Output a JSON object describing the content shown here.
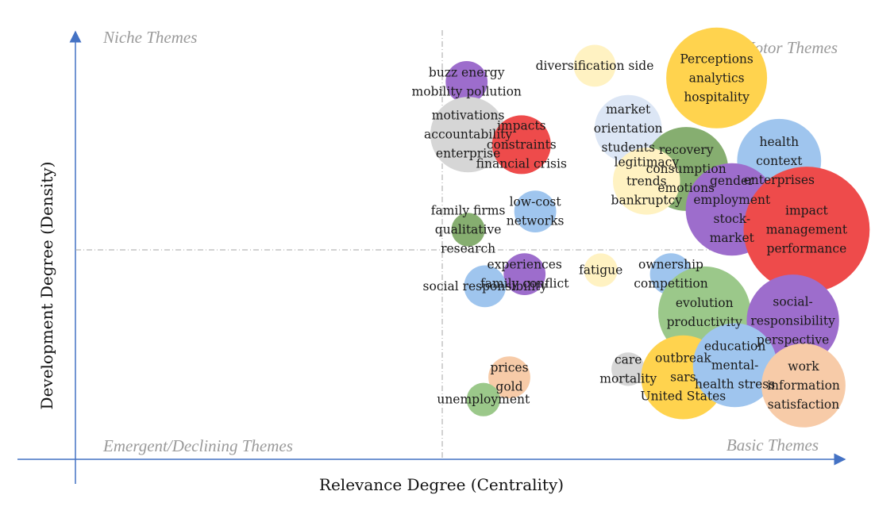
{
  "chart_data": {
    "type": "scatter",
    "subtype": "bubble",
    "title": "",
    "xlabel": "Relevance Degree (Centrality)",
    "ylabel": "Development Degree (Density)",
    "grid": false,
    "quadrant_labels": {
      "top_left": "Niche Themes",
      "top_right": "Motor Themes",
      "bottom_left": "Emergent/Declining Themes",
      "bottom_right": "Basic Themes"
    },
    "colors": {
      "axis": "#4472C4",
      "divider": "#a6a6a6",
      "yellow": "#FFD34E",
      "lightyellow": "#FFF2C2",
      "red": "#EE4B4B",
      "blue": "#9FC5EE",
      "lightblue": "#DCE6F5",
      "green": "#9BC88A",
      "darkgreen": "#86AE70",
      "purple": "#9D6DCC",
      "gray": "#d6d6d6",
      "peach": "#F7CBA8"
    },
    "themes": [
      {
        "lines": [
          "buzz energy",
          "mobility pollution"
        ],
        "x": 0.16,
        "y": 0.83,
        "size": 4,
        "color": "purple"
      },
      {
        "lines": [
          "motivations",
          "accountability",
          "enterprise"
        ],
        "x": 0.17,
        "y": 0.57,
        "size": 8,
        "color": "gray"
      },
      {
        "lines": [
          "impacts",
          "constraints",
          "financial crisis"
        ],
        "x": 0.52,
        "y": 0.52,
        "size": 6,
        "color": "red"
      },
      {
        "lines": [
          "low-cost",
          "networks"
        ],
        "x": 0.61,
        "y": 0.19,
        "size": 4,
        "color": "blue"
      },
      {
        "lines": [
          "family firms",
          "qualitative",
          "research"
        ],
        "x": 0.17,
        "y": 0.1,
        "size": 3,
        "color": "darkgreen"
      },
      {
        "lines": [
          "experiences",
          "family conflict"
        ],
        "x": 0.54,
        "y": -0.12,
        "size": 4,
        "color": "purple"
      },
      {
        "lines": [
          "social responsibility"
        ],
        "x": 0.28,
        "y": -0.18,
        "size": 4,
        "color": "blue"
      },
      {
        "lines": [
          "prices",
          "gold"
        ],
        "x": 0.44,
        "y": -0.63,
        "size": 4,
        "color": "peach"
      },
      {
        "lines": [
          "unemployment"
        ],
        "x": 0.27,
        "y": -0.74,
        "size": 3,
        "color": "green"
      },
      {
        "lines": [
          "diversification side"
        ],
        "x": 1.0,
        "y": 0.91,
        "size": 4,
        "color": "lightyellow"
      },
      {
        "lines": [
          "Perceptions",
          "analytics",
          "hospitality"
        ],
        "x": 1.8,
        "y": 0.85,
        "size": 11,
        "color": "yellow"
      },
      {
        "lines": [
          "market",
          "orientation",
          "students"
        ],
        "x": 1.22,
        "y": 0.6,
        "size": 7,
        "color": "lightblue"
      },
      {
        "lines": [
          "recovery",
          "consumption",
          "emotions"
        ],
        "x": 1.6,
        "y": 0.4,
        "size": 9,
        "color": "darkgreen"
      },
      {
        "lines": [
          "legitimacy",
          "trends",
          "bankruptcy"
        ],
        "x": 1.34,
        "y": 0.34,
        "size": 7,
        "color": "lightyellow"
      },
      {
        "lines": [
          "health",
          "context",
          "enterprises"
        ],
        "x": 2.21,
        "y": 0.44,
        "size": 9,
        "color": "blue"
      },
      {
        "lines": [
          "gender",
          "employment",
          "stock-",
          "market"
        ],
        "x": 1.9,
        "y": 0.2,
        "size": 10,
        "color": "purple"
      },
      {
        "lines": [
          "impact",
          "management",
          "performance"
        ],
        "x": 2.39,
        "y": 0.1,
        "size": 14,
        "color": "red"
      },
      {
        "lines": [
          "fatigue"
        ],
        "x": 1.04,
        "y": -0.1,
        "size": 3,
        "color": "lightyellow"
      },
      {
        "lines": [
          "ownership",
          "competition"
        ],
        "x": 1.5,
        "y": -0.12,
        "size": 4,
        "color": "blue"
      },
      {
        "lines": [
          "evolution",
          "productivity"
        ],
        "x": 1.72,
        "y": -0.31,
        "size": 10,
        "color": "green"
      },
      {
        "lines": [
          "social-",
          "responsibility",
          "perspective"
        ],
        "x": 2.3,
        "y": -0.35,
        "size": 10,
        "color": "purple"
      },
      {
        "lines": [
          "care",
          "mortality"
        ],
        "x": 1.22,
        "y": -0.59,
        "size": 3,
        "color": "gray"
      },
      {
        "lines": [
          "outbreak",
          "sars",
          "United States"
        ],
        "x": 1.58,
        "y": -0.63,
        "size": 9,
        "color": "yellow"
      },
      {
        "lines": [
          "education",
          "mental-",
          "health stress"
        ],
        "x": 1.92,
        "y": -0.57,
        "size": 9,
        "color": "blue"
      },
      {
        "lines": [
          "work",
          "information",
          "satisfaction"
        ],
        "x": 2.37,
        "y": -0.67,
        "size": 9,
        "color": "peach"
      }
    ]
  }
}
